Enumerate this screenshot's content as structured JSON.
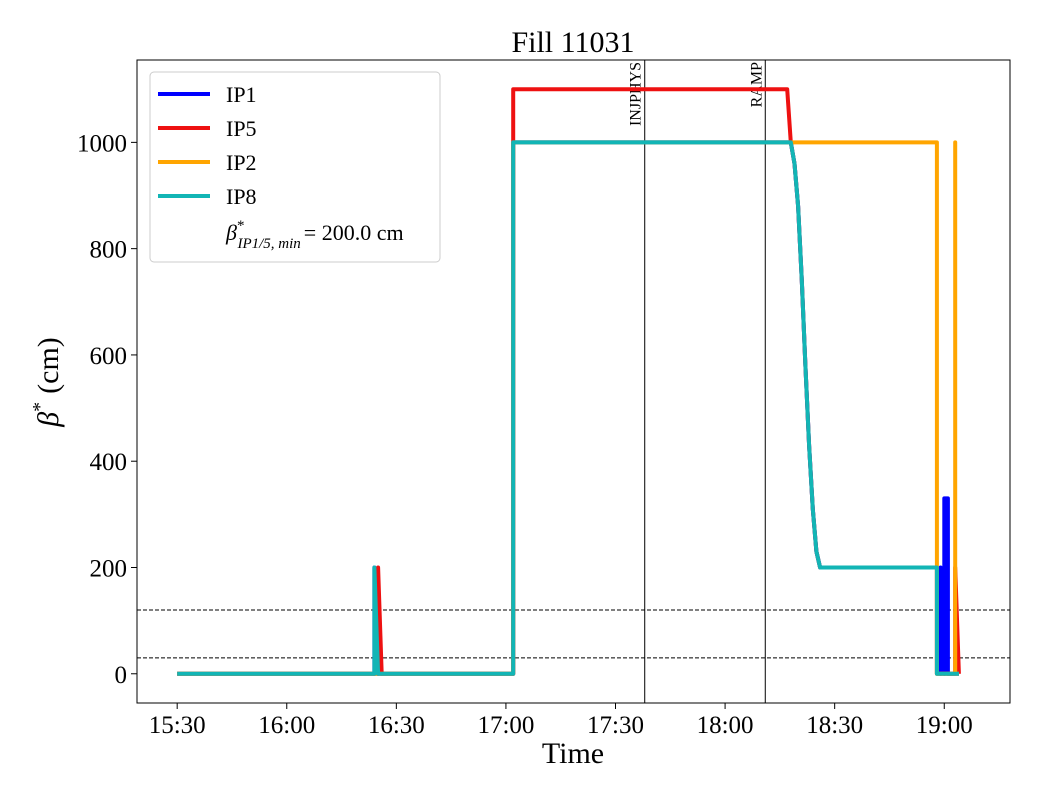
{
  "chart_data": {
    "type": "line",
    "title": "Fill 11031",
    "xlabel": "Time",
    "ylabel": {
      "symbol": "β",
      "sup": "*",
      "text": "(cm)"
    },
    "xlim": [
      "15:19",
      "19:18"
    ],
    "xticks": [
      "15:30",
      "16:00",
      "16:30",
      "17:00",
      "17:30",
      "18:00",
      "18:30",
      "19:00"
    ],
    "ylim": [
      -55,
      1155
    ],
    "yticks": [
      0,
      200,
      400,
      600,
      800,
      1000
    ],
    "vlines": [
      {
        "x": "17:38",
        "label": "INJPHYS"
      },
      {
        "x": "18:11",
        "label": "RAMP"
      }
    ],
    "hlines": [
      120,
      30
    ],
    "legend_position": "upper left",
    "legend_note": {
      "symbol": "β",
      "sup": "*",
      "sub": "IP1/5, min",
      "text": "= 200.0 cm"
    },
    "series": [
      {
        "name": "IP1",
        "color": "#0000ff",
        "x": [
          "15:30",
          "16:24",
          "16:24",
          "16:25",
          "17:02",
          "17:02",
          "18:18",
          "18:19",
          "18:20",
          "18:21",
          "18:22",
          "18:23",
          "18:24",
          "18:25",
          "18:26",
          "18:58",
          "18:59",
          "18:59",
          "19:00",
          "19:00",
          "19:01",
          "19:01",
          "19:04"
        ],
        "values": [
          0,
          0,
          200,
          0,
          0,
          1000,
          1000,
          960,
          880,
          740,
          580,
          430,
          310,
          230,
          200,
          200,
          0,
          200,
          0,
          330,
          330,
          0,
          0
        ]
      },
      {
        "name": "IP5",
        "color": "#ee1111",
        "x": [
          "15:30",
          "16:25",
          "16:25",
          "16:26",
          "17:02",
          "17:02",
          "18:17",
          "18:18",
          "18:19",
          "18:20",
          "18:21",
          "18:22",
          "18:23",
          "18:24",
          "18:25",
          "18:26",
          "18:58",
          "18:58",
          "19:03",
          "19:03",
          "19:04"
        ],
        "values": [
          0,
          0,
          200,
          0,
          0,
          1100,
          1100,
          1000,
          960,
          880,
          740,
          580,
          430,
          310,
          230,
          200,
          200,
          0,
          0,
          200,
          0
        ]
      },
      {
        "name": "IP2",
        "color": "#ffa500",
        "x": [
          "15:30",
          "17:02",
          "17:02",
          "18:58",
          "18:58",
          "19:03",
          "19:03",
          "19:03",
          "19:04"
        ],
        "values": [
          0,
          0,
          1000,
          1000,
          0,
          0,
          1000,
          0,
          0
        ]
      },
      {
        "name": "IP8",
        "color": "#12b5b5",
        "x": [
          "15:30",
          "16:24",
          "16:24",
          "16:25",
          "17:02",
          "17:02",
          "18:18",
          "18:19",
          "18:20",
          "18:21",
          "18:22",
          "18:23",
          "18:24",
          "18:25",
          "18:26",
          "18:58",
          "18:58",
          "19:04"
        ],
        "values": [
          0,
          0,
          200,
          0,
          0,
          1000,
          1000,
          960,
          880,
          740,
          580,
          430,
          310,
          230,
          200,
          200,
          0,
          0
        ]
      }
    ]
  }
}
